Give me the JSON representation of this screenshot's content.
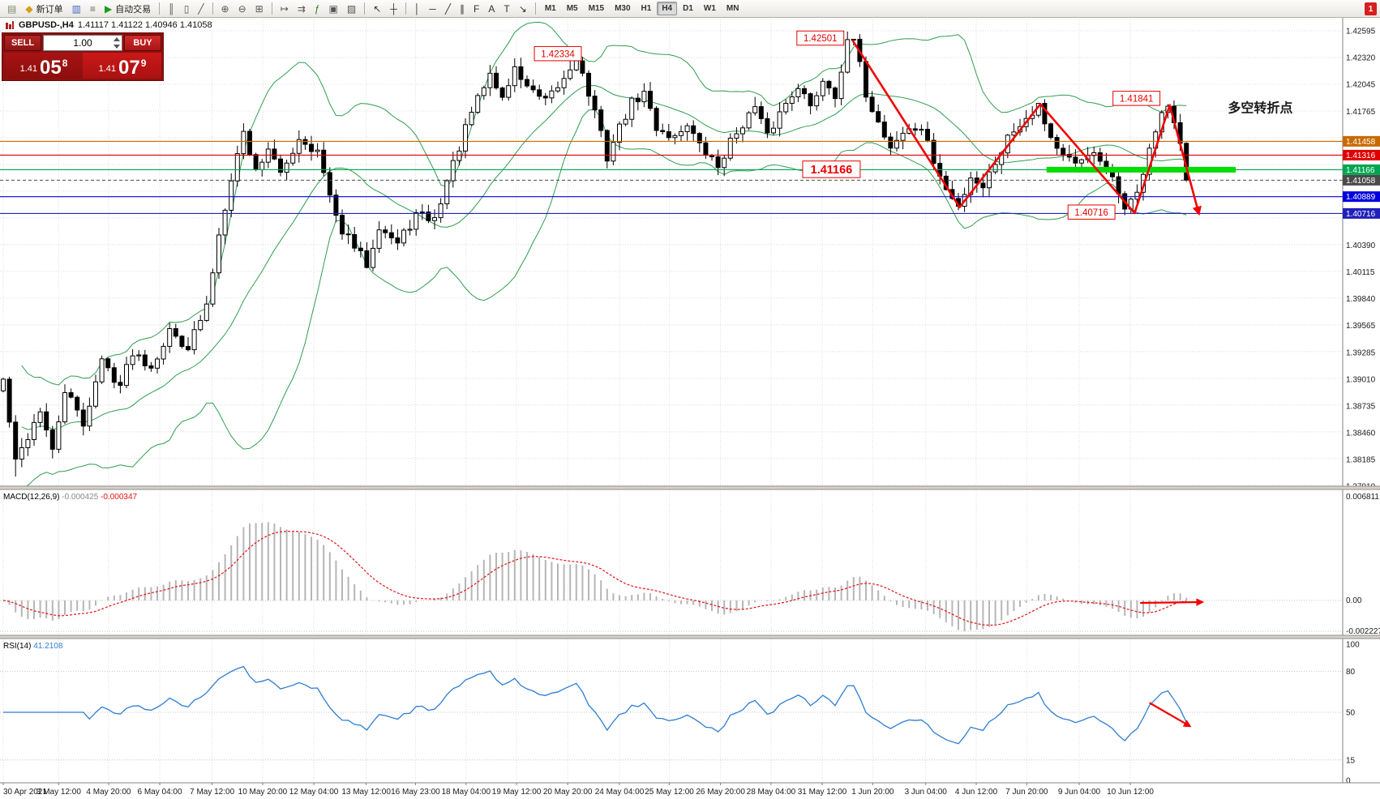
{
  "toolbar": {
    "badge": "1",
    "groups": [
      {
        "items": [
          {
            "name": "new-chart-icon",
            "icon": "new-chart-icon"
          },
          {
            "name": "new-order-button",
            "icon": "new-order-icon",
            "label": "新订单"
          },
          {
            "name": "charts-icon",
            "icon": "charts-icon"
          },
          {
            "name": "market-watch-icon",
            "icon": "market-watch-icon"
          },
          {
            "name": "autotrading-button",
            "icon": "autotrading-icon",
            "label": "自动交易"
          }
        ]
      },
      {
        "items": [
          {
            "name": "chart-bars-icon",
            "icon": "chart-bars-icon"
          },
          {
            "name": "chart-candles-icon",
            "icon": "chart-candles-icon"
          },
          {
            "name": "chart-line-icon",
            "icon": "chart-line-icon"
          }
        ]
      },
      {
        "items": [
          {
            "name": "zoom-in-icon",
            "icon": "zoom-in-icon"
          },
          {
            "name": "zoom-out-icon",
            "icon": "zoom-out-icon"
          },
          {
            "name": "tile-windows-icon",
            "icon": "tile-windows-icon"
          }
        ]
      },
      {
        "items": [
          {
            "name": "auto-scroll-icon",
            "icon": "auto-scroll-icon"
          },
          {
            "name": "chart-shift-icon",
            "icon": "chart-shift-icon"
          },
          {
            "name": "indicators-icon",
            "icon": "indicators-icon"
          },
          {
            "name": "periods-icon",
            "icon": "periods-icon"
          },
          {
            "name": "templates-icon",
            "icon": "templates-icon"
          }
        ]
      },
      {
        "items": [
          {
            "name": "cursor-icon",
            "icon": "cursor-icon"
          },
          {
            "name": "crosshair-icon",
            "icon": "crosshair-icon"
          }
        ]
      },
      {
        "items": [
          {
            "name": "vertical-line-icon",
            "icon": "vline-icon"
          },
          {
            "name": "horizontal-line-icon",
            "icon": "hline-icon"
          },
          {
            "name": "trendline-icon",
            "icon": "trendline-icon"
          },
          {
            "name": "channel-icon",
            "icon": "channel-icon"
          },
          {
            "name": "fibonacci-icon",
            "icon": "fibonacci-icon"
          },
          {
            "name": "text-icon",
            "icon": "text-icon"
          },
          {
            "name": "label-icon",
            "icon": "label-icon"
          },
          {
            "name": "arrows-icon",
            "icon": "arrows-icon"
          }
        ]
      }
    ],
    "timeframes": {
      "options": [
        "M1",
        "M5",
        "M15",
        "M30",
        "H1",
        "H4",
        "D1",
        "W1",
        "MN"
      ],
      "active": "H4"
    }
  },
  "header": {
    "symbol_period": "GBPUSD-,H4",
    "ohlc": "1.41117 1.41122 1.40946 1.41058"
  },
  "one_click": {
    "sell_label": "SELL",
    "buy_label": "BUY",
    "volume": "1.00",
    "sell_small": "1.41",
    "sell_big": "05",
    "sell_sup": "8",
    "buy_small": "1.41",
    "buy_big": "07",
    "buy_sup": "9"
  },
  "macd": {
    "label": "MACD(12,26,9)",
    "value_main": "-0.000425",
    "value_signal": "-0.000347",
    "scale_top": "0.006811",
    "scale_zero": "0.00",
    "scale_bottom": "-0.002227"
  },
  "rsi": {
    "label": "RSI(14)",
    "value": "41.2108",
    "levels": [
      "100",
      "80",
      "50",
      "15",
      "0"
    ],
    "level_lines": [
      80,
      50,
      15
    ]
  },
  "chart_data": {
    "type": "candlestick",
    "symbol": "GBPUSD-",
    "timeframe": "H4",
    "bars_visible": 193,
    "price_max": 1.42595,
    "price_min": 1.3791,
    "grid_step": 0.00275,
    "colors": {
      "band": "#2e9e4f",
      "grid": "#dcdcdc",
      "arrow": "#f20000",
      "highlight": "#00dd00",
      "macd_hist": "#b6b6b6",
      "macd_signal": "#e01515",
      "rsi": "#2d7dd2",
      "cn_text": "#00b050"
    },
    "anchors": [
      [
        0,
        1.39
      ],
      [
        2,
        1.3815
      ],
      [
        6,
        1.387
      ],
      [
        8,
        1.3825
      ],
      [
        10,
        1.389
      ],
      [
        13,
        1.3855
      ],
      [
        16,
        1.392
      ],
      [
        19,
        1.3895
      ],
      [
        21,
        1.393
      ],
      [
        24,
        1.3915
      ],
      [
        27,
        1.395
      ],
      [
        30,
        1.3935
      ],
      [
        33,
        1.3975
      ],
      [
        35,
        1.405
      ],
      [
        37,
        1.411
      ],
      [
        39,
        1.4155
      ],
      [
        41,
        1.4115
      ],
      [
        43,
        1.414
      ],
      [
        45,
        1.411
      ],
      [
        48,
        1.415
      ],
      [
        51,
        1.4135
      ],
      [
        54,
        1.4065
      ],
      [
        56,
        1.4045
      ],
      [
        59,
        1.402
      ],
      [
        61,
        1.406
      ],
      [
        64,
        1.404
      ],
      [
        67,
        1.407
      ],
      [
        70,
        1.4065
      ],
      [
        72,
        1.4105
      ],
      [
        74,
        1.414
      ],
      [
        76,
        1.4175
      ],
      [
        79,
        1.4215
      ],
      [
        81,
        1.419
      ],
      [
        83,
        1.422
      ],
      [
        86,
        1.4195
      ],
      [
        88,
        1.4185
      ],
      [
        91,
        1.421
      ],
      [
        93,
        1.4233
      ],
      [
        96,
        1.4175
      ],
      [
        98,
        1.413
      ],
      [
        100,
        1.416
      ],
      [
        102,
        1.4185
      ],
      [
        104,
        1.4195
      ],
      [
        106,
        1.416
      ],
      [
        109,
        1.415
      ],
      [
        111,
        1.4165
      ],
      [
        113,
        1.414
      ],
      [
        116,
        1.412
      ],
      [
        118,
        1.4145
      ],
      [
        120,
        1.4165
      ],
      [
        122,
        1.418
      ],
      [
        124,
        1.415
      ],
      [
        126,
        1.4175
      ],
      [
        129,
        1.4205
      ],
      [
        131,
        1.418
      ],
      [
        133,
        1.421
      ],
      [
        135,
        1.4195
      ],
      [
        137,
        1.4245
      ],
      [
        138,
        1.425
      ],
      [
        140,
        1.4195
      ],
      [
        142,
        1.4165
      ],
      [
        144,
        1.414
      ],
      [
        146,
        1.4155
      ],
      [
        149,
        1.416
      ],
      [
        151,
        1.4125
      ],
      [
        153,
        1.4095
      ],
      [
        155,
        1.4078
      ],
      [
        157,
        1.411
      ],
      [
        159,
        1.41
      ],
      [
        161,
        1.4125
      ],
      [
        163,
        1.415
      ],
      [
        165,
        1.4165
      ],
      [
        168,
        1.4184
      ],
      [
        170,
        1.415
      ],
      [
        172,
        1.413
      ],
      [
        174,
        1.412
      ],
      [
        176,
        1.4135
      ],
      [
        178,
        1.4125
      ],
      [
        180,
        1.4105
      ],
      [
        182,
        1.408
      ],
      [
        184,
        1.409
      ],
      [
        186,
        1.414
      ],
      [
        188,
        1.417
      ],
      [
        189,
        1.4182
      ],
      [
        191,
        1.414
      ],
      [
        192,
        1.4106
      ]
    ],
    "key_points": {
      "close": [
        [
          192,
          1.41058
        ]
      ],
      "high": [
        [
          93,
          1.42334
        ],
        [
          138,
          1.42501
        ],
        [
          168,
          1.4184
        ],
        [
          189,
          1.41841
        ]
      ],
      "low": [
        [
          2,
          1.3801
        ],
        [
          59,
          1.4015
        ],
        [
          155,
          1.4075
        ],
        [
          183,
          1.40716
        ]
      ]
    },
    "bollinger": {
      "period": 20,
      "deviation": 2
    },
    "levels": [
      {
        "text": "1.41458",
        "value": 1.41458,
        "color": "#c96a00",
        "line": "solid"
      },
      {
        "text": "1.41316",
        "value": 1.41316,
        "color": "#e00000",
        "line": "solid"
      },
      {
        "text": "1.41166",
        "value": 1.41166,
        "color": "#00a651",
        "line": "solid"
      },
      {
        "text": "1.41058",
        "value": 1.41058,
        "color": "#4a4a4a",
        "line": "dash"
      },
      {
        "text": "1.40889",
        "value": 1.40889,
        "color": "#0000dd",
        "line": "solid"
      },
      {
        "text": "1.40716",
        "value": 1.40716,
        "color": "#2020bb",
        "line": "solid"
      }
    ],
    "axis_labels": [
      "1.42595",
      "1.42320",
      "1.42045",
      "1.41765",
      "1.40390",
      "1.40115",
      "1.39840",
      "1.39565",
      "1.39285",
      "1.39010",
      "1.38735",
      "1.38460",
      "1.38185",
      "1.37910"
    ],
    "annotations": [
      {
        "text": "1.42334",
        "bar": 90,
        "price": 1.4236,
        "type": "price-box"
      },
      {
        "text": "1.42501",
        "bar": 132.6,
        "price": 1.4252,
        "type": "price-box"
      },
      {
        "text": "1.41841",
        "bar": 183.9,
        "price": 1.419,
        "type": "price-box"
      },
      {
        "text": "1.41166",
        "bar": 134.4,
        "price": 1.4117,
        "type": "price-box-large"
      },
      {
        "text": "1.40716",
        "bar": 176.6,
        "price": 1.4073,
        "type": "price-box"
      },
      {
        "text": "多空转折点",
        "bar": 204,
        "price": 1.418,
        "type": "text-green"
      }
    ],
    "highlight_bar": {
      "from_bar": 169.3,
      "to_bar": 200,
      "price": 1.41166,
      "thickness": 7
    },
    "trend_arrows": {
      "zigzag": [
        [
          137.8,
          1.425
        ],
        [
          155.2,
          1.4078
        ],
        [
          168.3,
          1.4184
        ],
        [
          183.6,
          1.4072
        ],
        [
          189.3,
          1.4183
        ],
        [
          194,
          1.4072
        ]
      ],
      "macd_arrow": {
        "from_bar": 184.5,
        "to_bar": 194.5
      },
      "rsi_arrow": {
        "from_bar": 186,
        "from_rsi": 57,
        "to_bar": 192.5,
        "to_rsi": 40
      }
    },
    "time_axis": [
      {
        "label": "30 Apr 2021",
        "bar": 0
      },
      {
        "label": "3 May 12:00",
        "bar": 9
      },
      {
        "label": "4 May 20:00",
        "bar": 17.1
      },
      {
        "label": "6 May 04:00",
        "bar": 25.4
      },
      {
        "label": "7 May 12:00",
        "bar": 33.9
      },
      {
        "label": "10 May 20:00",
        "bar": 42.1
      },
      {
        "label": "12 May 04:00",
        "bar": 50.4
      },
      {
        "label": "13 May 12:00",
        "bar": 58.9
      },
      {
        "label": "16 May 23:00",
        "bar": 66.9
      },
      {
        "label": "18 May 04:00",
        "bar": 75.1
      },
      {
        "label": "19 May 12:00",
        "bar": 83.3
      },
      {
        "label": "20 May 20:00",
        "bar": 91.6
      },
      {
        "label": "24 May 04:00",
        "bar": 100
      },
      {
        "label": "25 May 12:00",
        "bar": 108.1
      },
      {
        "label": "26 May 20:00",
        "bar": 116.4
      },
      {
        "label": "28 May 04:00",
        "bar": 124.6
      },
      {
        "label": "31 May 12:00",
        "bar": 132.9
      },
      {
        "label": "1 Jun 20:00",
        "bar": 141.1
      },
      {
        "label": "3 Jun 04:00",
        "bar": 149.7
      },
      {
        "label": "4 Jun 12:00",
        "bar": 157.9
      },
      {
        "label": "7 Jun 20:00",
        "bar": 166.1
      },
      {
        "label": "9 Jun 04:00",
        "bar": 174.6
      },
      {
        "label": "10 Jun 12:00",
        "bar": 182.9
      }
    ]
  }
}
